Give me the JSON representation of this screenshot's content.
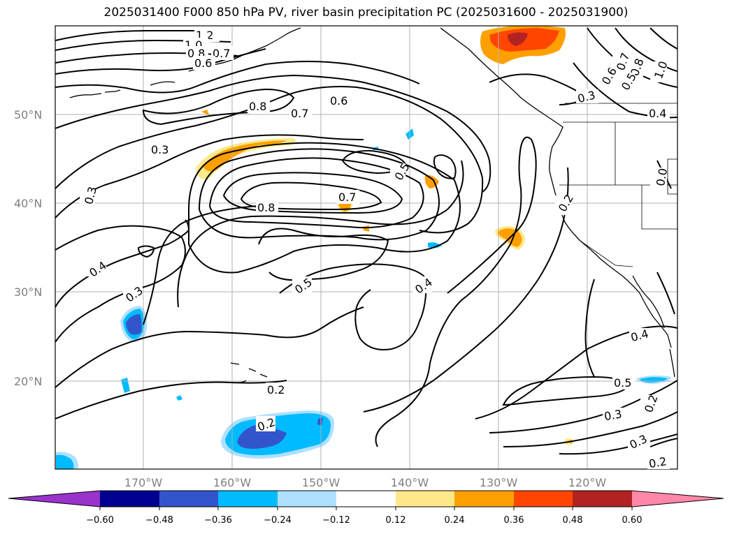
{
  "title": "2025031400 F000 850 hPa PV, river basin precipitation PC (2025031600 - 2025031900)",
  "map": {
    "lat_labels": [
      "50°N",
      "40°N",
      "30°N",
      "20°N"
    ],
    "lon_labels": [
      "170°W",
      "160°W",
      "150°W",
      "140°W",
      "130°W",
      "120°W"
    ],
    "contour_labels": [
      "1.2",
      "1.0",
      "0.8",
      "0.7",
      "0.6",
      "0.8",
      "0.7",
      "0.6",
      "0.3",
      "0.3",
      "0.5",
      "0.7",
      "0.8",
      "0.4",
      "0.3",
      "0.5",
      "0.4",
      "0.2",
      "0.2",
      "0.4",
      "0.5",
      "0.3",
      "0.3",
      "0.2",
      "0.2",
      "0.3",
      "0.7",
      "0.8",
      "0.6",
      "0.5",
      "1.0",
      "0.4",
      "0.2",
      "0.0"
    ],
    "colors": {
      "grid": "#b0b0b0",
      "land": "#000000",
      "contour": "#000000"
    }
  },
  "colorbar": {
    "ticks": [
      "−0.60",
      "−0.48",
      "−0.36",
      "−0.24",
      "−0.12",
      "0.12",
      "0.24",
      "0.36",
      "0.48",
      "0.60"
    ],
    "colors": [
      "#9933cc",
      "#000090",
      "#3355cc",
      "#00bbff",
      "#aee0ff",
      "#ffffff",
      "#ffe98a",
      "#ffa000",
      "#ff4500",
      "#b22222",
      "#ff88aa"
    ]
  }
}
